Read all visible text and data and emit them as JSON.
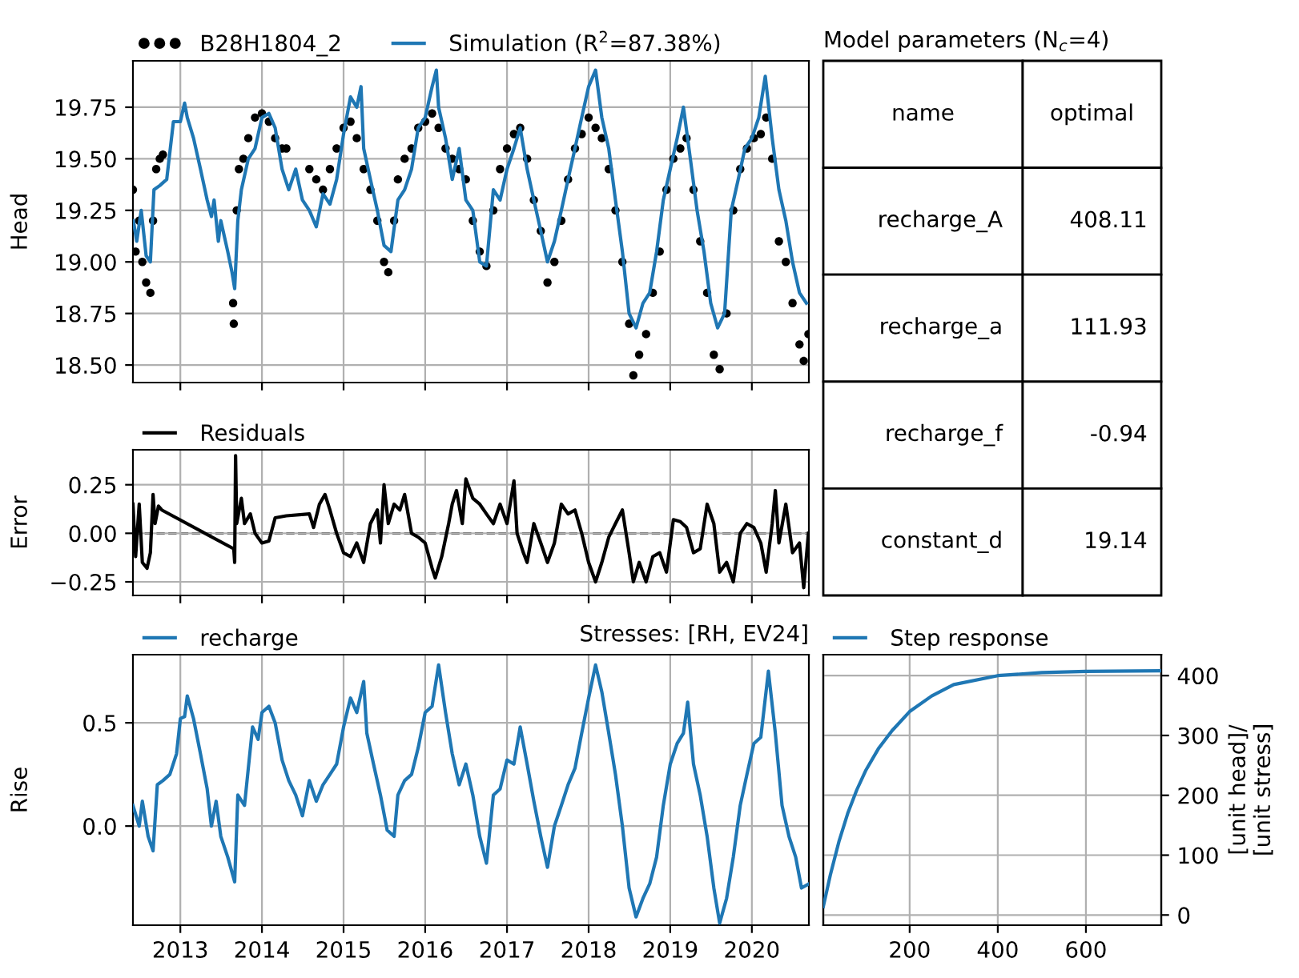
{
  "chart_data": [
    {
      "type": "line",
      "ylabel": "Head",
      "xlim": [
        "2012-06-03",
        "2020-09-12"
      ],
      "xticks": [
        "2013",
        "2014",
        "2015",
        "2016",
        "2017",
        "2018",
        "2019",
        "2020"
      ],
      "ylim": [
        18.415,
        19.975
      ],
      "yticks": [
        {
          "value": 18.5,
          "label": "18.50"
        },
        18.75,
        {
          "value": 19.0,
          "label": "19.00"
        },
        19.25,
        {
          "value": 19.5,
          "label": "19.50"
        },
        19.75
      ],
      "tick_labels": "y",
      "grid": true,
      "legend": "top left",
      "series": [
        {
          "name": "B28H1804_2",
          "type": "scatter",
          "marker": "circle",
          "color": "#000000",
          "x": [
            "2012-06-03",
            "2012-06-15",
            "2012-07-01",
            "2012-07-15",
            "2012-08-01",
            "2012-08-20",
            "2012-09-01",
            "2012-09-15",
            "2012-10-01",
            "2012-10-15",
            "2013-08-25",
            "2013-08-28",
            "2013-09-10",
            "2013-09-20",
            "2013-10-10",
            "2013-11-01",
            "2013-12-01",
            "2014-01-01",
            "2014-02-01",
            "2014-03-01",
            "2014-04-01",
            "2014-04-20",
            "2014-08-01",
            "2014-09-01",
            "2014-10-01",
            "2014-11-01",
            "2014-12-01",
            "2015-01-01",
            "2015-02-01",
            "2015-03-01",
            "2015-04-01",
            "2015-05-01",
            "2015-06-01",
            "2015-07-01",
            "2015-07-20",
            "2015-08-15",
            "2015-09-01",
            "2015-10-01",
            "2015-11-01",
            "2015-12-01",
            "2016-01-01",
            "2016-02-01",
            "2016-03-01",
            "2016-04-01",
            "2016-05-01",
            "2016-06-01",
            "2016-07-01",
            "2016-08-01",
            "2016-09-01",
            "2016-10-01",
            "2016-11-01",
            "2016-12-01",
            "2017-01-01",
            "2017-02-01",
            "2017-03-01",
            "2017-04-01",
            "2017-05-01",
            "2017-06-01",
            "2017-07-01",
            "2017-08-01",
            "2017-09-01",
            "2017-10-01",
            "2017-11-01",
            "2017-12-01",
            "2018-01-01",
            "2018-02-01",
            "2018-03-01",
            "2018-04-01",
            "2018-05-01",
            "2018-06-01",
            "2018-07-01",
            "2018-07-20",
            "2018-08-15",
            "2018-09-15",
            "2018-10-15",
            "2018-11-15",
            "2018-12-15",
            "2019-01-15",
            "2019-02-15",
            "2019-03-15",
            "2019-04-15",
            "2019-05-15",
            "2019-06-15",
            "2019-07-15",
            "2019-08-10",
            "2019-09-10",
            "2019-10-10",
            "2019-11-10",
            "2019-12-10",
            "2020-01-10",
            "2020-02-10",
            "2020-03-05",
            "2020-04-01",
            "2020-05-01",
            "2020-06-01",
            "2020-07-01",
            "2020-08-01",
            "2020-08-20",
            "2020-09-10"
          ],
          "values": [
            19.35,
            19.05,
            19.2,
            19.0,
            18.9,
            18.85,
            19.2,
            19.45,
            19.5,
            19.52,
            18.8,
            18.7,
            19.25,
            19.45,
            19.5,
            19.6,
            19.7,
            19.72,
            19.68,
            19.6,
            19.55,
            19.55,
            19.45,
            19.4,
            19.35,
            19.45,
            19.55,
            19.65,
            19.68,
            19.6,
            19.45,
            19.35,
            19.2,
            19.0,
            18.95,
            19.2,
            19.4,
            19.5,
            19.55,
            19.65,
            19.68,
            19.72,
            19.65,
            19.55,
            19.5,
            19.45,
            19.4,
            19.2,
            19.05,
            18.98,
            19.25,
            19.45,
            19.55,
            19.62,
            19.65,
            19.5,
            19.3,
            19.15,
            18.9,
            19.0,
            19.2,
            19.4,
            19.55,
            19.62,
            19.7,
            19.65,
            19.6,
            19.45,
            19.25,
            19.0,
            18.7,
            18.45,
            18.55,
            18.65,
            18.85,
            19.05,
            19.35,
            19.5,
            19.55,
            19.6,
            19.35,
            19.1,
            18.85,
            18.55,
            18.48,
            18.75,
            19.25,
            19.45,
            19.55,
            19.6,
            19.62,
            19.7,
            19.5,
            19.1,
            19.0,
            18.8,
            18.6,
            18.52,
            18.65
          ]
        },
        {
          "name": "Simulation (R$^{2}$=87.38%)",
          "type": "line",
          "color": "#1f77b4",
          "x": [
            "2012-06-05",
            "2012-06-20",
            "2012-07-10",
            "2012-08-01",
            "2012-08-20",
            "2012-09-05",
            "2012-10-01",
            "2012-11-01",
            "2012-12-01",
            "2013-01-01",
            "2013-01-20",
            "2013-02-01",
            "2013-03-01",
            "2013-04-01",
            "2013-05-01",
            "2013-05-20",
            "2013-06-01",
            "2013-06-20",
            "2013-07-01",
            "2013-08-01",
            "2013-08-20",
            "2013-09-01",
            "2013-09-15",
            "2013-10-01",
            "2013-11-01",
            "2013-12-01",
            "2014-01-01",
            "2014-02-01",
            "2014-03-01",
            "2014-04-01",
            "2014-05-01",
            "2014-06-01",
            "2014-07-01",
            "2014-08-01",
            "2014-09-01",
            "2014-10-01",
            "2014-11-01",
            "2014-12-01",
            "2015-01-01",
            "2015-02-01",
            "2015-03-01",
            "2015-03-20",
            "2015-04-01",
            "2015-05-01",
            "2015-06-01",
            "2015-07-01",
            "2015-08-01",
            "2015-09-01",
            "2015-10-01",
            "2015-11-01",
            "2015-12-01",
            "2016-01-01",
            "2016-02-01",
            "2016-02-20",
            "2016-03-01",
            "2016-04-01",
            "2016-05-01",
            "2016-06-01",
            "2016-07-01",
            "2016-08-01",
            "2016-09-01",
            "2016-10-01",
            "2016-11-01",
            "2016-12-01",
            "2017-01-01",
            "2017-02-01",
            "2017-03-01",
            "2017-04-01",
            "2017-05-01",
            "2017-06-01",
            "2017-07-01",
            "2017-08-01",
            "2017-09-01",
            "2017-10-01",
            "2017-11-01",
            "2017-12-01",
            "2018-01-01",
            "2018-02-01",
            "2018-03-01",
            "2018-04-01",
            "2018-05-01",
            "2018-06-01",
            "2018-07-01",
            "2018-08-01",
            "2018-09-01",
            "2018-10-01",
            "2018-11-01",
            "2018-12-01",
            "2019-01-01",
            "2019-02-01",
            "2019-03-01",
            "2019-04-01",
            "2019-05-01",
            "2019-06-01",
            "2019-07-01",
            "2019-08-01",
            "2019-09-01",
            "2019-10-01",
            "2019-11-01",
            "2019-12-01",
            "2020-01-01",
            "2020-02-01",
            "2020-03-01",
            "2020-04-01",
            "2020-05-01",
            "2020-06-01",
            "2020-07-01",
            "2020-08-01",
            "2020-09-01"
          ],
          "values": [
            19.2,
            19.1,
            19.25,
            19.03,
            19.0,
            19.35,
            19.37,
            19.4,
            19.68,
            19.68,
            19.77,
            19.7,
            19.6,
            19.45,
            19.3,
            19.22,
            19.3,
            19.1,
            19.2,
            19.05,
            18.95,
            18.87,
            19.2,
            19.35,
            19.5,
            19.55,
            19.7,
            19.72,
            19.65,
            19.45,
            19.35,
            19.45,
            19.3,
            19.25,
            19.17,
            19.33,
            19.28,
            19.4,
            19.62,
            19.8,
            19.75,
            19.85,
            19.55,
            19.4,
            19.25,
            19.08,
            19.05,
            19.3,
            19.35,
            19.45,
            19.65,
            19.7,
            19.85,
            19.93,
            19.75,
            19.6,
            19.4,
            19.55,
            19.3,
            19.25,
            19.0,
            18.98,
            19.35,
            19.3,
            19.45,
            19.55,
            19.65,
            19.45,
            19.3,
            19.15,
            19.0,
            19.1,
            19.25,
            19.4,
            19.55,
            19.7,
            19.85,
            19.93,
            19.7,
            19.55,
            19.3,
            19.05,
            18.75,
            18.68,
            18.8,
            18.85,
            19.05,
            19.3,
            19.45,
            19.6,
            19.75,
            19.5,
            19.25,
            19.05,
            18.8,
            18.68,
            18.75,
            19.25,
            19.4,
            19.55,
            19.6,
            19.7,
            19.9,
            19.6,
            19.35,
            19.2,
            19.0,
            18.85,
            18.8
          ]
        }
      ]
    },
    {
      "type": "line",
      "ylabel": "Error",
      "xlim": [
        "2012-06-03",
        "2020-09-12"
      ],
      "xticks": [
        "2013",
        "2014",
        "2015",
        "2016",
        "2017",
        "2018",
        "2019",
        "2020"
      ],
      "ylim": [
        -0.32,
        0.43
      ],
      "yticks": [
        {
          "value": -0.25,
          "label": "−0.25"
        },
        {
          "value": 0,
          "label": "0.00"
        },
        0.25
      ],
      "tick_labels": "y",
      "grid": true,
      "legend": "top left",
      "ref_lines": [
        {
          "axis": "y",
          "value": 0,
          "color": "#000000",
          "line_style": "dashed"
        }
      ],
      "series": [
        {
          "name": "Residuals",
          "color": "#000000",
          "x": [
            "2012-06-03",
            "2012-06-15",
            "2012-07-01",
            "2012-07-15",
            "2012-08-05",
            "2012-08-20",
            "2012-09-01",
            "2012-09-10",
            "2012-09-25",
            "2012-10-10",
            "2013-08-28",
            "2013-09-01",
            "2013-09-05",
            "2013-09-10",
            "2013-10-01",
            "2013-10-15",
            "2013-11-10",
            "2013-12-01",
            "2014-01-01",
            "2014-02-01",
            "2014-03-01",
            "2014-04-20",
            "2014-08-01",
            "2014-08-20",
            "2014-09-15",
            "2014-10-10",
            "2014-11-01",
            "2014-12-01",
            "2015-01-01",
            "2015-02-01",
            "2015-03-01",
            "2015-04-01",
            "2015-05-01",
            "2015-06-01",
            "2015-06-15",
            "2015-07-01",
            "2015-07-20",
            "2015-08-15",
            "2015-09-10",
            "2015-10-01",
            "2015-11-01",
            "2015-12-01",
            "2016-01-01",
            "2016-02-01",
            "2016-02-15",
            "2016-03-15",
            "2016-04-15",
            "2016-05-01",
            "2016-05-20",
            "2016-06-15",
            "2016-07-01",
            "2016-08-01",
            "2016-09-01",
            "2016-10-01",
            "2016-11-01",
            "2016-12-01",
            "2017-01-01",
            "2017-02-01",
            "2017-02-15",
            "2017-03-15",
            "2017-04-01",
            "2017-05-01",
            "2017-06-01",
            "2017-07-01",
            "2017-08-01",
            "2017-09-01",
            "2017-10-01",
            "2017-11-01",
            "2017-12-01",
            "2018-01-01",
            "2018-02-01",
            "2018-03-01",
            "2018-04-01",
            "2018-05-01",
            "2018-06-01",
            "2018-07-01",
            "2018-07-20",
            "2018-08-15",
            "2018-09-15",
            "2018-10-15",
            "2018-11-15",
            "2018-12-15",
            "2019-01-15",
            "2019-02-15",
            "2019-03-15",
            "2019-04-15",
            "2019-05-15",
            "2019-06-15",
            "2019-07-15",
            "2019-08-10",
            "2019-09-10",
            "2019-10-10",
            "2019-11-10",
            "2019-12-10",
            "2020-01-10",
            "2020-02-10",
            "2020-03-05",
            "2020-04-01",
            "2020-04-15",
            "2020-05-01",
            "2020-06-01",
            "2020-07-01",
            "2020-08-01",
            "2020-08-20",
            "2020-09-10"
          ],
          "values": [
            0.15,
            -0.12,
            0.15,
            -0.15,
            -0.18,
            -0.1,
            0.2,
            0.05,
            0.14,
            0.12,
            -0.08,
            -0.15,
            0.4,
            0.05,
            0.18,
            0.05,
            0.1,
            0.0,
            -0.05,
            -0.04,
            0.08,
            0.09,
            0.1,
            0.03,
            0.15,
            0.2,
            0.12,
            0.0,
            -0.1,
            -0.12,
            -0.05,
            -0.15,
            0.05,
            0.12,
            -0.05,
            0.25,
            0.05,
            0.15,
            0.12,
            0.2,
            0.0,
            -0.02,
            -0.05,
            -0.18,
            -0.23,
            -0.12,
            0.05,
            0.15,
            0.22,
            0.05,
            0.28,
            0.18,
            0.15,
            0.1,
            0.05,
            0.15,
            0.05,
            0.27,
            0.0,
            -0.1,
            -0.15,
            0.05,
            -0.05,
            -0.15,
            -0.05,
            0.15,
            0.1,
            0.12,
            0.0,
            -0.15,
            -0.25,
            -0.15,
            -0.02,
            0.05,
            0.12,
            -0.1,
            -0.25,
            -0.15,
            -0.25,
            -0.12,
            -0.1,
            -0.2,
            0.07,
            0.06,
            0.03,
            -0.1,
            -0.08,
            0.15,
            0.05,
            -0.2,
            -0.15,
            -0.25,
            0.0,
            0.05,
            0.03,
            -0.05,
            -0.2,
            0.05,
            0.22,
            -0.05,
            0.15,
            -0.1,
            -0.05,
            -0.28,
            0.0
          ]
        }
      ]
    },
    {
      "type": "other",
      "title": "Model parameters (N$_{c}$=4)",
      "annotations": [
        "name",
        "optimal"
      ],
      "categories": [
        "recharge_A",
        "recharge_a",
        "recharge_f",
        "constant_d"
      ],
      "values": [
        408.11,
        111.93,
        -0.94,
        19.14
      ],
      "data_labels": true
    },
    {
      "type": "line",
      "title": "Stresses: [RH, EV24]",
      "ylabel": "Rise",
      "xlim": [
        "2012-06-03",
        "2020-09-12"
      ],
      "xticks": [
        "2013",
        "2014",
        "2015",
        "2016",
        "2017",
        "2018",
        "2019",
        "2020"
      ],
      "ylim": [
        -0.48,
        0.83
      ],
      "yticks": [
        {
          "value": 0,
          "label": "0.0"
        },
        0.5
      ],
      "grid": true,
      "legend": "top left",
      "series": [
        {
          "name": "recharge",
          "color": "#1f77b4",
          "x": [
            "2012-06-03",
            "2012-07-01",
            "2012-07-15",
            "2012-08-10",
            "2012-09-01",
            "2012-09-20",
            "2012-10-15",
            "2012-11-15",
            "2012-12-15",
            "2013-01-01",
            "2013-01-20",
            "2013-02-01",
            "2013-03-01",
            "2013-04-01",
            "2013-05-01",
            "2013-05-20",
            "2013-06-10",
            "2013-07-01",
            "2013-08-01",
            "2013-09-01",
            "2013-09-15",
            "2013-10-15",
            "2013-11-01",
            "2013-11-20",
            "2013-12-15",
            "2014-01-01",
            "2014-02-01",
            "2014-03-01",
            "2014-04-01",
            "2014-05-01",
            "2014-06-01",
            "2014-07-01",
            "2014-08-01",
            "2014-09-01",
            "2014-10-01",
            "2014-11-01",
            "2014-12-01",
            "2015-01-01",
            "2015-02-01",
            "2015-03-01",
            "2015-04-01",
            "2015-04-15",
            "2015-05-15",
            "2015-06-15",
            "2015-07-15",
            "2015-08-15",
            "2015-09-01",
            "2015-10-01",
            "2015-11-01",
            "2015-12-01",
            "2016-01-01",
            "2016-02-01",
            "2016-03-01",
            "2016-04-01",
            "2016-05-01",
            "2016-06-01",
            "2016-07-01",
            "2016-08-01",
            "2016-09-01",
            "2016-10-01",
            "2016-11-01",
            "2016-12-01",
            "2017-01-01",
            "2017-02-01",
            "2017-03-01",
            "2017-04-01",
            "2017-05-01",
            "2017-06-01",
            "2017-07-01",
            "2017-08-01",
            "2017-09-01",
            "2017-10-01",
            "2017-11-01",
            "2017-12-01",
            "2018-01-01",
            "2018-02-01",
            "2018-03-01",
            "2018-04-01",
            "2018-05-01",
            "2018-06-01",
            "2018-07-01",
            "2018-08-01",
            "2018-09-01",
            "2018-10-01",
            "2018-11-01",
            "2018-12-01",
            "2019-01-01",
            "2019-02-01",
            "2019-03-01",
            "2019-03-20",
            "2019-04-15",
            "2019-05-15",
            "2019-06-15",
            "2019-07-15",
            "2019-08-10",
            "2019-09-10",
            "2019-10-10",
            "2019-11-10",
            "2019-12-10",
            "2020-01-10",
            "2020-02-10",
            "2020-03-15",
            "2020-04-15",
            "2020-05-15",
            "2020-06-15",
            "2020-07-15",
            "2020-08-10",
            "2020-09-12"
          ],
          "values": [
            0.1,
            0.0,
            0.12,
            -0.05,
            -0.12,
            0.2,
            0.22,
            0.25,
            0.35,
            0.52,
            0.53,
            0.63,
            0.52,
            0.35,
            0.18,
            0.0,
            0.12,
            -0.05,
            -0.15,
            -0.27,
            0.15,
            0.1,
            0.28,
            0.48,
            0.42,
            0.55,
            0.58,
            0.5,
            0.32,
            0.22,
            0.15,
            0.05,
            0.22,
            0.12,
            0.2,
            0.25,
            0.3,
            0.48,
            0.62,
            0.55,
            0.7,
            0.45,
            0.3,
            0.15,
            -0.02,
            -0.05,
            0.15,
            0.22,
            0.25,
            0.38,
            0.55,
            0.58,
            0.78,
            0.55,
            0.35,
            0.2,
            0.3,
            0.15,
            -0.05,
            -0.18,
            0.15,
            0.18,
            0.32,
            0.3,
            0.48,
            0.3,
            0.12,
            -0.05,
            -0.2,
            0.0,
            0.1,
            0.2,
            0.28,
            0.45,
            0.62,
            0.78,
            0.65,
            0.45,
            0.25,
            0.0,
            -0.3,
            -0.44,
            -0.35,
            -0.28,
            -0.15,
            0.1,
            0.3,
            0.4,
            0.45,
            0.6,
            0.3,
            0.15,
            -0.05,
            -0.3,
            -0.47,
            -0.35,
            -0.15,
            0.1,
            0.25,
            0.4,
            0.43,
            0.75,
            0.45,
            0.1,
            -0.05,
            -0.15,
            -0.3,
            -0.28
          ]
        }
      ]
    },
    {
      "type": "line",
      "y2label": "[unit head]/\n[unit stress]",
      "xlim": [
        4,
        771
      ],
      "xticks": [
        200,
        400,
        600
      ],
      "y2lim": [
        -17,
        435
      ],
      "y2ticks": [
        0,
        100,
        200,
        300,
        400
      ],
      "grid": true,
      "legend": "top left",
      "series": [
        {
          "name": "Step response",
          "color": "#1f77b4",
          "axis": "y2",
          "x": [
            4,
            20,
            40,
            60,
            80,
            100,
            130,
            160,
            200,
            250,
            300,
            400,
            500,
            600,
            771
          ],
          "values": [
            14,
            67,
            124,
            171,
            209,
            241,
            279,
            308,
            340,
            366,
            385,
            400,
            405,
            407,
            408
          ]
        }
      ]
    }
  ]
}
